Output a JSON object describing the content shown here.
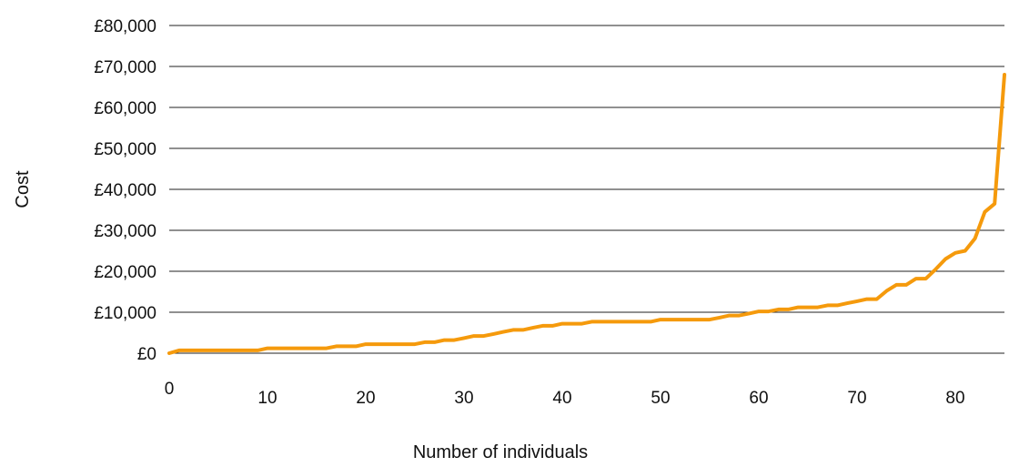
{
  "chart_data": {
    "type": "line",
    "title": "",
    "xlabel": "Number of individuals",
    "ylabel": "Cost",
    "xlim": [
      0,
      85
    ],
    "ylim": [
      0,
      80000
    ],
    "x_ticks": [
      {
        "value": 0,
        "label": "0"
      },
      {
        "value": 10,
        "label": "10"
      },
      {
        "value": 20,
        "label": "20"
      },
      {
        "value": 30,
        "label": "30"
      },
      {
        "value": 40,
        "label": "40"
      },
      {
        "value": 50,
        "label": "50"
      },
      {
        "value": 60,
        "label": "60"
      },
      {
        "value": 70,
        "label": "70"
      },
      {
        "value": 80,
        "label": "80"
      }
    ],
    "y_ticks": [
      {
        "value": 0,
        "label": "£0"
      },
      {
        "value": 10000,
        "label": "£10,000"
      },
      {
        "value": 20000,
        "label": "£20,000"
      },
      {
        "value": 30000,
        "label": "£30,000"
      },
      {
        "value": 40000,
        "label": "£40,000"
      },
      {
        "value": 50000,
        "label": "£50,000"
      },
      {
        "value": 60000,
        "label": "£60,000"
      },
      {
        "value": 70000,
        "label": "£70,000"
      },
      {
        "value": 80000,
        "label": "£80,000"
      }
    ],
    "grid": true,
    "legend": "none",
    "series": [
      {
        "color": "#F59A0C",
        "x": [
          0,
          1,
          2,
          3,
          4,
          5,
          6,
          7,
          8,
          9,
          10,
          11,
          12,
          13,
          14,
          15,
          16,
          17,
          18,
          19,
          20,
          21,
          22,
          23,
          24,
          25,
          26,
          27,
          28,
          29,
          30,
          31,
          32,
          33,
          34,
          35,
          36,
          37,
          38,
          39,
          40,
          41,
          42,
          43,
          44,
          45,
          46,
          47,
          48,
          49,
          50,
          51,
          52,
          53,
          54,
          55,
          56,
          57,
          58,
          59,
          60,
          61,
          62,
          63,
          64,
          65,
          66,
          67,
          68,
          69,
          70,
          71,
          72,
          73,
          74,
          75,
          76,
          77,
          78,
          79,
          80,
          81,
          82,
          83,
          84,
          85
        ],
        "values": [
          0,
          700,
          700,
          700,
          700,
          700,
          700,
          700,
          700,
          700,
          1200,
          1200,
          1200,
          1200,
          1200,
          1200,
          1200,
          1700,
          1700,
          1700,
          2200,
          2200,
          2200,
          2200,
          2200,
          2200,
          2700,
          2700,
          3200,
          3200,
          3700,
          4200,
          4200,
          4700,
          5200,
          5700,
          5700,
          6200,
          6700,
          6700,
          7200,
          7200,
          7200,
          7700,
          7700,
          7700,
          7700,
          7700,
          7700,
          7700,
          8200,
          8200,
          8200,
          8200,
          8200,
          8200,
          8700,
          9200,
          9200,
          9700,
          10200,
          10200,
          10700,
          10700,
          11200,
          11200,
          11200,
          11700,
          11700,
          12200,
          12700,
          13200,
          13200,
          15200,
          16700,
          16700,
          18200,
          18200,
          20500,
          23000,
          24500,
          25000,
          28000,
          34500,
          36500,
          68000
        ]
      }
    ]
  }
}
